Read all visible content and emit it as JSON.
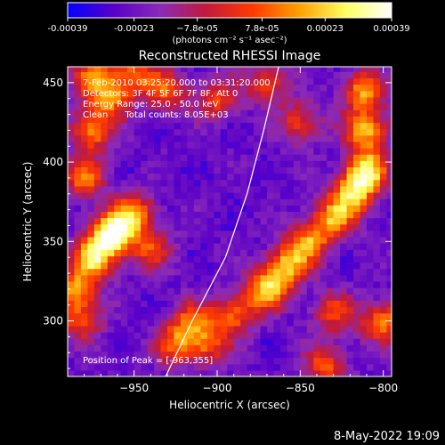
{
  "chart_data": {
    "type": "heatmap",
    "title": "Reconstructed RHESSI Image",
    "xlabel": "Heliocentric X (arcsec)",
    "ylabel": "Heliocentric Y (arcsec)",
    "xlim": [
      -990,
      -795
    ],
    "ylim": [
      265,
      460
    ],
    "x_ticks": [
      -950,
      -900,
      -850,
      -800
    ],
    "y_ticks": [
      300,
      350,
      400,
      450
    ],
    "colorbar": {
      "range": [
        -0.00039,
        0.00039
      ],
      "tick_values": [
        -0.00039,
        -0.00023,
        -7.8e-05,
        7.8e-05,
        0.00023,
        0.00039
      ],
      "tick_labels": [
        "-0.00039",
        "-0.00023",
        "−7.8e-05",
        "7.8e-05",
        "0.00023",
        "0.00039"
      ],
      "unit_label": "(photons cm⁻² s⁻¹ asec⁻²)",
      "colors": [
        "#0000ff",
        "#5a00c8",
        "#8a2ab8",
        "#c21a3a",
        "#ff3a00",
        "#ffa000",
        "#ffff60",
        "#ffffff"
      ]
    },
    "annotations": [
      "7-Feb-2010 03:25:20.000 to 03:31:20.000",
      "Detectors: 3F 4F 5F 6F 7F 8F, Att 0",
      "Energy Range: 25.0 - 50.0 keV",
      "Clean      Total counts: 8.05E+03"
    ],
    "peak_label": "Position of Peak = [-963,355]",
    "peak": [
      -963,
      355
    ],
    "sources": [
      {
        "x": -963,
        "y": 355,
        "intensity": 1.0
      },
      {
        "x": -975,
        "y": 340,
        "intensity": 0.75
      },
      {
        "x": -950,
        "y": 368,
        "intensity": 0.6
      },
      {
        "x": -940,
        "y": 345,
        "intensity": 0.45
      },
      {
        "x": -980,
        "y": 390,
        "intensity": 0.55
      },
      {
        "x": -975,
        "y": 420,
        "intensity": 0.6
      },
      {
        "x": -965,
        "y": 440,
        "intensity": 0.55
      },
      {
        "x": -975,
        "y": 455,
        "intensity": 0.5
      },
      {
        "x": -985,
        "y": 320,
        "intensity": 0.6
      },
      {
        "x": -982,
        "y": 300,
        "intensity": 0.45
      },
      {
        "x": -890,
        "y": 305,
        "intensity": 0.55
      },
      {
        "x": -870,
        "y": 320,
        "intensity": 0.7
      },
      {
        "x": -858,
        "y": 335,
        "intensity": 0.65
      },
      {
        "x": -845,
        "y": 350,
        "intensity": 0.6
      },
      {
        "x": -830,
        "y": 365,
        "intensity": 0.6
      },
      {
        "x": -818,
        "y": 380,
        "intensity": 0.7
      },
      {
        "x": -810,
        "y": 395,
        "intensity": 0.8
      },
      {
        "x": -810,
        "y": 420,
        "intensity": 0.7
      },
      {
        "x": -812,
        "y": 445,
        "intensity": 0.65
      },
      {
        "x": -915,
        "y": 300,
        "intensity": 0.5
      },
      {
        "x": -925,
        "y": 285,
        "intensity": 0.5
      },
      {
        "x": -905,
        "y": 285,
        "intensity": 0.45
      },
      {
        "x": -800,
        "y": 300,
        "intensity": 0.6
      },
      {
        "x": -835,
        "y": 272,
        "intensity": 0.5
      },
      {
        "x": -950,
        "y": 455,
        "intensity": 0.55
      },
      {
        "x": -930,
        "y": 445,
        "intensity": 0.5
      },
      {
        "x": -870,
        "y": 450,
        "intensity": 0.45
      },
      {
        "x": -850,
        "y": 425,
        "intensity": 0.45
      },
      {
        "x": -900,
        "y": 440,
        "intensity": 0.45
      },
      {
        "x": -830,
        "y": 305,
        "intensity": 0.45
      }
    ],
    "limb": [
      [
        -931,
        265
      ],
      [
        -915,
        300
      ],
      [
        -895,
        340
      ],
      [
        -882,
        380
      ],
      [
        -872,
        420
      ],
      [
        -863,
        460
      ]
    ]
  },
  "footer_timestamp": "8-May-2022 19:09"
}
